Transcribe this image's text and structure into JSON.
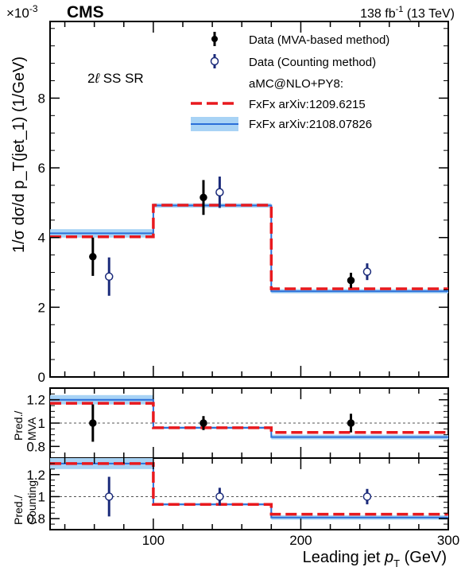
{
  "header": {
    "experiment": "CMS",
    "lumi_prefix": "138 fb",
    "lumi_exp": "-1",
    "lumi_suffix": " (13 TeV)",
    "scale_base": "×10",
    "scale_exp": "-3"
  },
  "region_label_pre": "2",
  "region_label_l": "ℓ",
  "region_label_post": " SS SR",
  "legend": {
    "data_mva": "Data (MVA-based method)",
    "data_count": "Data (Counting method)",
    "mc_header": "aMC@NLO+PY8:",
    "fxfx_red": "FxFx arXiv:1209.6215",
    "fxfx_blue": "FxFx arXiv:2108.07826"
  },
  "axes": {
    "main_ylabel": "1/σ dσ/d p_T(jet_1) (1/GeV)",
    "ratio1_ylabel_line1": "Pred./",
    "ratio1_ylabel_line2": "MVA",
    "ratio2_ylabel_line1": "Pred./",
    "ratio2_ylabel_line2": "Counting",
    "xlabel_pre": "Leading jet ",
    "xlabel_p": "p",
    "xlabel_sub": "T",
    "xlabel_post": " (GeV)"
  },
  "colors": {
    "data_mva": "#000000",
    "data_count": "#1a2a7a",
    "fxfx_red": "#e8191e",
    "fxfx_blue": "#2a6fd8",
    "fxfx_blue_band": "#a8d3f5"
  },
  "chart_data": [
    {
      "type": "line",
      "panel": "main",
      "xlim": [
        30,
        300
      ],
      "ylim": [
        0,
        0.0102
      ],
      "y_scale_factor": "10^-3",
      "x_ticks": [
        100,
        200,
        300
      ],
      "y_ticks": [
        0,
        2,
        4,
        6,
        8
      ],
      "bin_edges": [
        30,
        100,
        180,
        300
      ],
      "series": [
        {
          "name": "Data (MVA-based method)",
          "x": [
            59,
            134,
            234
          ],
          "values": [
            3.45,
            5.15,
            2.77
          ],
          "err": [
            0.55,
            0.5,
            0.22
          ]
        },
        {
          "name": "Data (Counting method)",
          "x": [
            70,
            145,
            245
          ],
          "values": [
            2.88,
            5.3,
            3.02
          ],
          "err": [
            0.55,
            0.45,
            0.24
          ]
        },
        {
          "name": "FxFx arXiv:1209.6215",
          "values": [
            4.02,
            4.93,
            2.53
          ]
        },
        {
          "name": "FxFx arXiv:2108.07826",
          "values": [
            4.12,
            4.92,
            2.46
          ],
          "band": [
            0.12,
            0.06,
            0.06
          ]
        }
      ]
    },
    {
      "type": "line",
      "panel": "ratio_mva",
      "ylim": [
        0.7,
        1.3
      ],
      "y_ticks": [
        0.8,
        1,
        1.2
      ],
      "bin_edges": [
        30,
        100,
        180,
        300
      ],
      "series": [
        {
          "name": "Data (MVA-based method)",
          "x": [
            59,
            134,
            234
          ],
          "values": [
            1.0,
            1.0,
            1.0
          ],
          "err": [
            0.16,
            0.06,
            0.08
          ]
        },
        {
          "name": "FxFx arXiv:1209.6215",
          "values": [
            1.17,
            0.96,
            0.92
          ]
        },
        {
          "name": "FxFx arXiv:2108.07826",
          "values": [
            1.2,
            0.96,
            0.88
          ],
          "band": [
            0.04,
            0.01,
            0.02
          ]
        }
      ]
    },
    {
      "type": "line",
      "panel": "ratio_counting",
      "ylim": [
        0.7,
        1.35
      ],
      "y_ticks": [
        0.8,
        1,
        1.2
      ],
      "bin_edges": [
        30,
        100,
        180,
        300
      ],
      "series": [
        {
          "name": "Data (Counting method)",
          "x": [
            70,
            145,
            245
          ],
          "values": [
            1.0,
            1.0,
            1.0
          ],
          "err": [
            0.18,
            0.08,
            0.07
          ]
        },
        {
          "name": "FxFx arXiv:1209.6215",
          "values": [
            1.3,
            0.93,
            0.84
          ]
        },
        {
          "name": "FxFx arXiv:2108.07826",
          "values": [
            1.3,
            0.93,
            0.81
          ],
          "band": [
            0.05,
            0.01,
            0.02
          ]
        }
      ]
    }
  ]
}
